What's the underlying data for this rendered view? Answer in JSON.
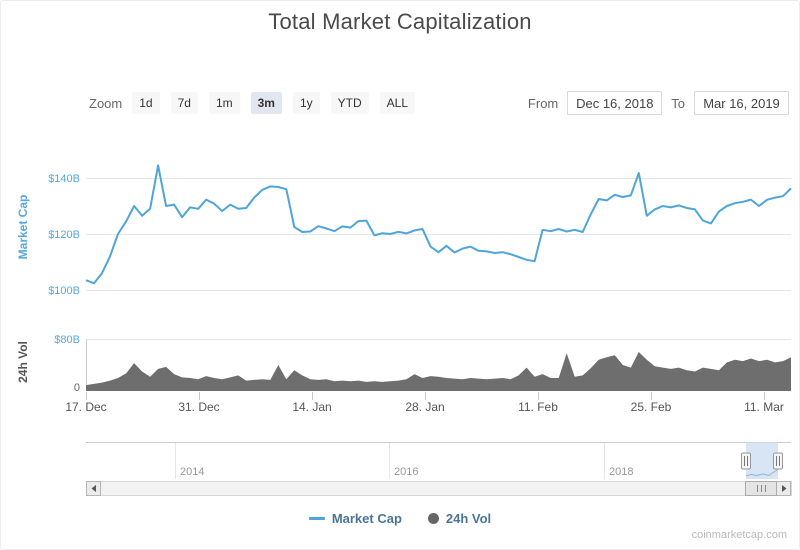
{
  "title": "Total Market Capitalization",
  "attribution": "coinmarketcap.com",
  "toolbar": {
    "zoom_label": "Zoom",
    "buttons": [
      {
        "label": "1d",
        "selected": false
      },
      {
        "label": "7d",
        "selected": false
      },
      {
        "label": "1m",
        "selected": false
      },
      {
        "label": "3m",
        "selected": true
      },
      {
        "label": "1y",
        "selected": false
      },
      {
        "label": "YTD",
        "selected": false
      },
      {
        "label": "ALL",
        "selected": false
      }
    ],
    "from_label": "From",
    "from_value": "Dec 16, 2018",
    "to_label": "To",
    "to_value": "Mar 16, 2019"
  },
  "legend": {
    "items": [
      {
        "label": "Market Cap",
        "symbol": "line",
        "color": "#4fa5db"
      },
      {
        "label": "24h Vol",
        "symbol": "circle",
        "color": "#666666"
      }
    ]
  },
  "colors": {
    "line_blue": "#4fa5db",
    "axis_blue": "#58a8dc",
    "volume_gray": "#6e6e6e",
    "x_label_gray": "#555555",
    "grid_gray": "#e6e6e6",
    "year_label_gray": "#999999"
  },
  "navigator": {
    "years": [
      "2014",
      "2016",
      "2018"
    ]
  },
  "chart_data": [
    {
      "type": "line",
      "name": "Market Cap",
      "ylabel": "Market Cap",
      "color": "#4fa5db",
      "x_start": "Dec 17, 2018",
      "x_end": "Mar 16, 2019",
      "interval": "daily",
      "xticks": [
        "17. Dec",
        "31. Dec",
        "14. Jan",
        "28. Jan",
        "11. Feb",
        "25. Feb",
        "11. Mar"
      ],
      "yticks": [
        {
          "value": 100,
          "label": "$100B"
        },
        {
          "value": 120,
          "label": "$120B"
        },
        {
          "value": 140,
          "label": "$140B"
        }
      ],
      "ylim": [
        98,
        150
      ],
      "unit": "USD billions",
      "values": [
        103.5,
        102.4,
        106,
        112,
        120,
        124.5,
        130,
        126.5,
        129,
        144.5,
        130,
        130.5,
        126,
        129.5,
        129,
        132.3,
        130.8,
        128.2,
        130.5,
        129,
        129.3,
        133,
        135.8,
        137,
        136.8,
        136,
        122.5,
        120.7,
        120.9,
        122.8,
        122,
        121,
        122.7,
        122.3,
        124.6,
        124.8,
        119.5,
        120.3,
        120,
        120.8,
        120.2,
        121.3,
        121.8,
        115.5,
        113.5,
        115.8,
        113.4,
        114.8,
        115.5,
        114,
        113.8,
        113.2,
        113.5,
        112.8,
        111.8,
        110.8,
        110.3,
        121.5,
        121,
        121.8,
        120.9,
        121.5,
        120.7,
        127,
        132.5,
        132,
        134,
        133.2,
        133.8,
        141.8,
        126.5,
        128.8,
        130,
        129.5,
        130.2,
        129.3,
        128.8,
        124.8,
        123.8,
        128,
        130,
        131,
        131.5,
        132.3,
        130,
        132.2,
        133,
        133.5,
        136.3
      ]
    },
    {
      "type": "area",
      "name": "24h Vol",
      "ylabel": "24h Vol",
      "color": "#6e6e6e",
      "yticks": [
        {
          "value": 0,
          "label": "0"
        },
        {
          "value": 80,
          "label": "$80B"
        }
      ],
      "ylim": [
        0,
        80
      ],
      "unit": "USD billions",
      "values": [
        9,
        11,
        13,
        16,
        20,
        27,
        43,
        30,
        22,
        34,
        37,
        26,
        21,
        20,
        18,
        23,
        20,
        18,
        21,
        24,
        16,
        17,
        18,
        17,
        40,
        18,
        32,
        24,
        18,
        17,
        18,
        15,
        16,
        15,
        16,
        14,
        15,
        14,
        15,
        16,
        18,
        26,
        20,
        23,
        22,
        20,
        19,
        18,
        20,
        19,
        18,
        19,
        20,
        18,
        24,
        36,
        22,
        26,
        20,
        20,
        58,
        22,
        24,
        35,
        48,
        52,
        55,
        40,
        36,
        60,
        48,
        38,
        36,
        34,
        36,
        32,
        30,
        36,
        34,
        32,
        44,
        48,
        46,
        50,
        46,
        48,
        44,
        46,
        52
      ]
    }
  ]
}
